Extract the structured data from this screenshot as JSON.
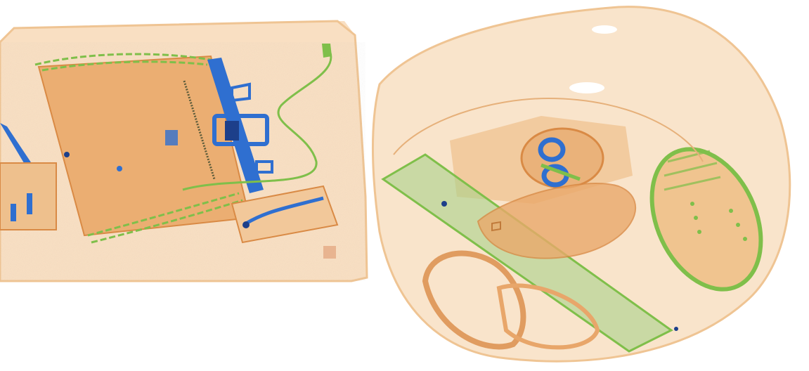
{
  "image": {
    "kind": "x-ray-baggage-scan",
    "palette": {
      "background": "#ffffff",
      "organic": "#e89a4e",
      "organic_light": "#f6d3a8",
      "inorganic": "#7fbf4a",
      "metal": "#2f6fd0",
      "metal_dark": "#1d3f8a"
    },
    "items": [
      "bag-left",
      "bag-right",
      "knife",
      "chain",
      "metal-rail",
      "cable",
      "small-box",
      "tool",
      "shoe",
      "sandal",
      "strap",
      "handcuffs",
      "ruler"
    ]
  }
}
